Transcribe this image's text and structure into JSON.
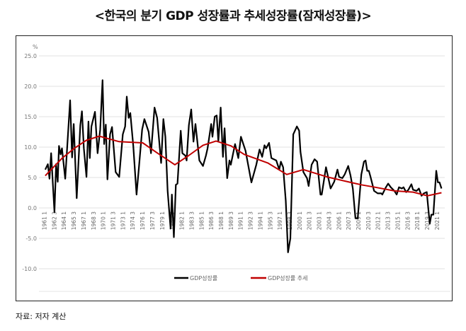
{
  "title": "<한국의 분기 GDP 성장률과 추세성장률(잠재성장률)>",
  "source": "자료: 저자 계산",
  "chart_data": {
    "type": "line",
    "title": "<한국의 분기 GDP 성장률과 추세성장률(잠재성장률)>",
    "ylabel": "%",
    "ylim": [
      -10,
      25
    ],
    "yticks": [
      "25.0",
      "20.0",
      "15.0",
      "10.0",
      "5.0",
      "0.0",
      "-5.0",
      "-10.0"
    ],
    "ytick_values": [
      25,
      20,
      15,
      10,
      5,
      0,
      -5,
      -10
    ],
    "xticks": [
      "1961 1",
      "1962 3",
      "1964 1",
      "1965 3",
      "1967 1",
      "1968 3",
      "1970 1",
      "1971 3",
      "1973 1",
      "1974 3",
      "1976 1",
      "1977 3",
      "1979 1",
      "1980 3",
      "1982 1",
      "1983 3",
      "1985 1",
      "1986 3",
      "1988 1",
      "1989 3",
      "1991 1",
      "1992 3",
      "1994 1",
      "1995 3",
      "1997 1",
      "1998 3",
      "2000 1",
      "2001 3",
      "2003 1",
      "2004 3",
      "2006 1",
      "2007 3",
      "2009 1",
      "2010 3",
      "2012 1",
      "2013 3",
      "2015 1",
      "2016 3",
      "2018 1",
      "2019 3",
      "2021 1"
    ],
    "grid": true,
    "legend_position": "bottom",
    "series": [
      {
        "name": "GDP성장률",
        "color": "#000000",
        "x": [
          1961.1,
          1961.5,
          1961.75,
          1962.0,
          1962.5,
          1962.75,
          1963.0,
          1963.2,
          1963.45,
          1963.65,
          1964.15,
          1964.9,
          1965.2,
          1965.45,
          1965.9,
          1966.45,
          1966.7,
          1967.0,
          1967.4,
          1967.7,
          1967.9,
          1968.15,
          1968.7,
          1969.1,
          1969.5,
          1969.85,
          1970.1,
          1970.35,
          1970.6,
          1971.0,
          1971.3,
          1971.85,
          1972.4,
          1972.95,
          1973.3,
          1973.55,
          1973.85,
          1974.1,
          1974.55,
          1975.05,
          1975.45,
          1975.9,
          1976.25,
          1976.9,
          1977.25,
          1977.8,
          1978.2,
          1978.8,
          1979.15,
          1979.45,
          1979.8,
          1980.25,
          1980.45,
          1980.75,
          1981.05,
          1981.3,
          1981.8,
          1982.05,
          1982.5,
          1982.7,
          1983.05,
          1983.4,
          1983.75,
          1984.05,
          1984.65,
          1985.2,
          1985.65,
          1985.9,
          1986.45,
          1986.65,
          1987.0,
          1987.3,
          1987.55,
          1987.9,
          1988.25,
          1988.5,
          1988.9,
          1989.25,
          1989.45,
          1990.1,
          1990.6,
          1991.0,
          1991.7,
          1992.6,
          1993.35,
          1993.85,
          1994.25,
          1994.6,
          1994.85,
          1995.3,
          1995.65,
          1996.4,
          1996.85,
          1997.1,
          1997.45,
          1997.85,
          1998.2,
          1998.55,
          1999.0,
          1999.55,
          1999.9,
          2000.1,
          2000.55,
          2001.1,
          2001.35,
          2001.8,
          2002.25,
          2002.65,
          2003.15,
          2003.35,
          2004.0,
          2004.7,
          2005.25,
          2005.75,
          2006.0,
          2006.5,
          2006.85,
          2007.4,
          2007.75,
          2008.1,
          2008.5,
          2008.85,
          2009.4,
          2009.8,
          2010.05,
          2010.3,
          2010.55,
          2010.8,
          2011.35,
          2011.9,
          2012.45,
          2012.6,
          2013.15,
          2013.5,
          2013.9,
          2014.45,
          2014.8,
          2015.15,
          2015.6,
          2015.85,
          2016.25,
          2016.6,
          2017.05,
          2017.3,
          2017.85,
          2018.2,
          2018.6,
          2018.95,
          2019.4,
          2019.85,
          2020.1,
          2020.4,
          2020.85,
          2021.1,
          2021.35,
          2021.65
        ],
        "values": [
          6.3,
          7.2,
          4.8,
          9.0,
          -0.7,
          7.2,
          4.3,
          10.2,
          8.8,
          9.8,
          4.8,
          17.7,
          8.3,
          13.8,
          1.6,
          13.6,
          15.9,
          9.8,
          5.1,
          14.2,
          8.2,
          13.4,
          15.8,
          9.0,
          12.9,
          21.0,
          10.5,
          13.7,
          4.7,
          12.1,
          13.3,
          5.9,
          5.1,
          12.1,
          13.4,
          18.3,
          14.8,
          15.6,
          10.2,
          2.2,
          7.1,
          12.9,
          14.6,
          12.5,
          9.0,
          16.5,
          14.8,
          7.4,
          14.6,
          11.7,
          2.8,
          -3.4,
          2.2,
          -4.8,
          3.8,
          4.0,
          12.7,
          9.0,
          8.6,
          7.8,
          13.6,
          16.2,
          10.9,
          13.8,
          7.8,
          6.9,
          8.6,
          9.8,
          13.8,
          11.7,
          15.0,
          15.2,
          10.9,
          16.5,
          8.4,
          13.1,
          4.9,
          7.8,
          7.1,
          10.5,
          8.2,
          11.7,
          9.4,
          4.2,
          7.1,
          9.6,
          8.4,
          10.3,
          9.8,
          10.7,
          8.2,
          7.8,
          6.3,
          7.6,
          6.7,
          1.2,
          -7.3,
          -5.0,
          12.1,
          13.4,
          12.7,
          9.2,
          5.9,
          4.9,
          3.6,
          7.1,
          8.0,
          7.6,
          2.2,
          2.2,
          6.7,
          3.2,
          4.3,
          6.3,
          5.1,
          4.9,
          5.5,
          6.9,
          5.3,
          3.2,
          -1.7,
          -1.7,
          5.5,
          7.6,
          7.8,
          6.1,
          6.1,
          5.1,
          2.8,
          2.4,
          2.4,
          2.2,
          3.4,
          4.0,
          3.4,
          2.8,
          2.2,
          3.4,
          3.2,
          3.4,
          2.6,
          3.0,
          3.9,
          3.0,
          2.8,
          3.2,
          2.0,
          2.4,
          2.6,
          -2.6,
          -1.1,
          -1.1,
          6.1,
          4.2,
          4.2,
          3.2
        ]
      },
      {
        "name": "GDP성장률 추세",
        "color": "#c00000",
        "x": [
          1961.1,
          1963.7,
          1965.55,
          1967.35,
          1969.35,
          1971.0,
          1972.4,
          1976.0,
          1978.0,
          1980.9,
          1983.0,
          1985.2,
          1987.2,
          1989.5,
          1991.5,
          1995.1,
          1998.0,
          2000.55,
          2004.15,
          2007.75,
          2009.4,
          2011.55,
          2014.45,
          2017.3,
          2019.5,
          2021.65
        ],
        "values": [
          5.3,
          8.2,
          9.8,
          11.1,
          11.8,
          11.3,
          10.9,
          10.7,
          9.2,
          7.1,
          8.6,
          10.3,
          11.0,
          10.2,
          8.8,
          7.4,
          5.5,
          6.3,
          5.1,
          4.2,
          3.8,
          3.4,
          2.8,
          2.6,
          2.0,
          2.5
        ]
      }
    ]
  }
}
